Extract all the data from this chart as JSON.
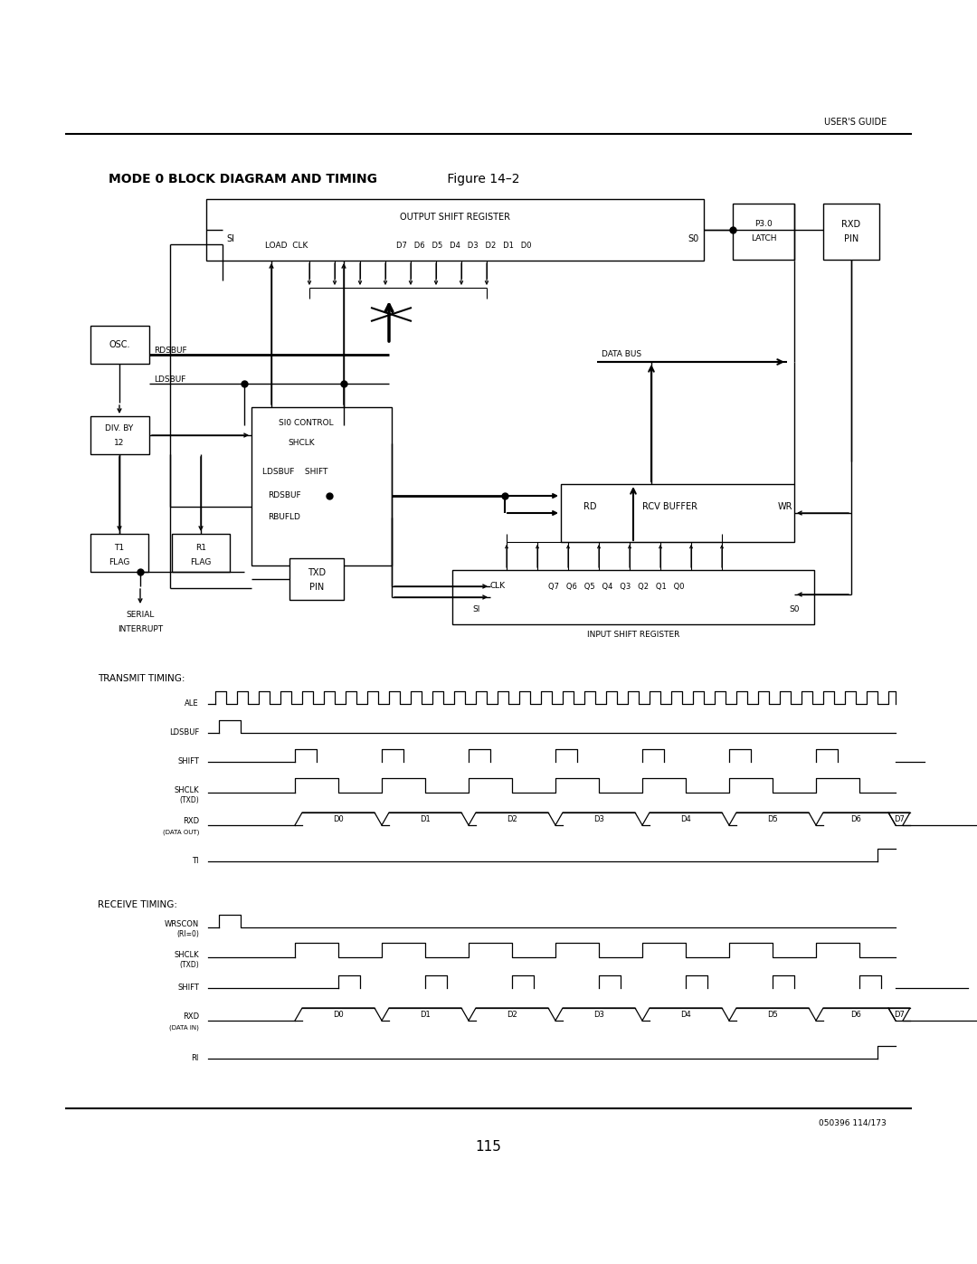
{
  "page_title": "USER'S GUIDE",
  "diagram_title_bold": "MODE 0 BLOCK DIAGRAM AND TIMING",
  "diagram_title_normal": " Figure 14–2",
  "page_number": "115",
  "footer_text": "050396 114/173",
  "background_color": "#ffffff",
  "line_color": "#000000",
  "text_color": "#000000"
}
